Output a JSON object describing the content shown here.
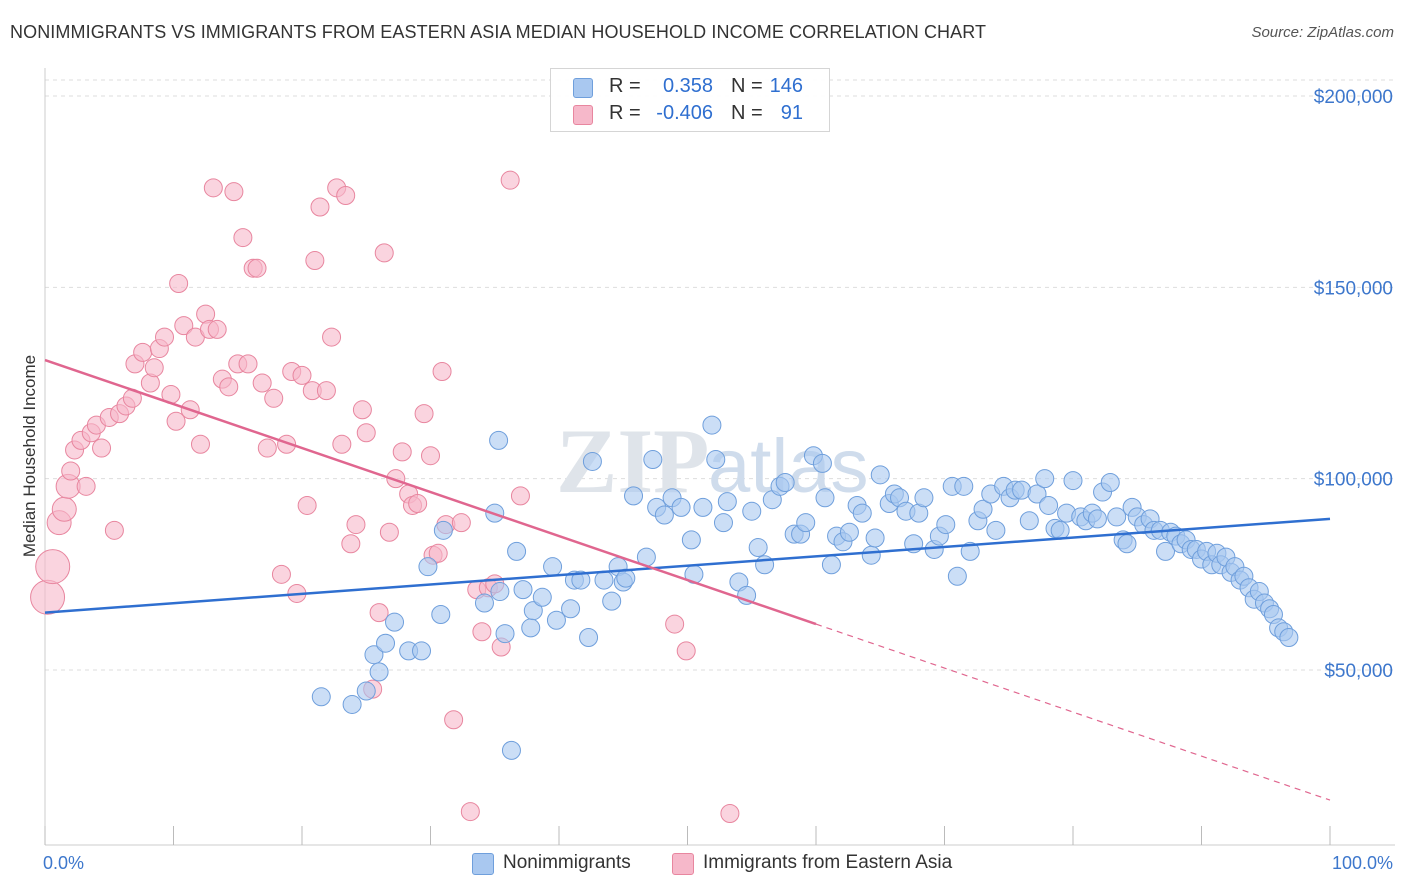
{
  "title": "NONIMMIGRANTS VS IMMIGRANTS FROM EASTERN ASIA MEDIAN HOUSEHOLD INCOME CORRELATION CHART",
  "source": "Source: ZipAtlas.com",
  "legend": {
    "rows": [
      {
        "r_label": "R =",
        "r_value": "0.358",
        "n_label": "N =",
        "n_value": "146"
      },
      {
        "r_label": "R =",
        "r_value": "-0.406",
        "n_label": "N =",
        "n_value": "91"
      }
    ]
  },
  "bottom_legend": [
    "Nonimmigrants",
    "Immigrants from Eastern Asia"
  ],
  "colors": {
    "blue_fill": "#a9c8f0",
    "blue_stroke": "#6f9fdc",
    "blue_line": "#2f6fd0",
    "pink_fill": "#f6b8ca",
    "pink_stroke": "#e8869f",
    "pink_line": "#e0668f",
    "grid": "#dddddd",
    "tick_label": "#3d77cc"
  },
  "chart_data": {
    "type": "scatter",
    "title": "NONIMMIGRANTS VS IMMIGRANTS FROM EASTERN ASIA MEDIAN HOUSEHOLD INCOME CORRELATION CHART",
    "xlabel": "",
    "ylabel": "Median Household Income",
    "xlim": [
      0,
      100
    ],
    "ylim": [
      0,
      210000
    ],
    "x_tick_labels": [
      "0.0%",
      "100.0%"
    ],
    "y_ticks": [
      50000,
      100000,
      150000,
      200000
    ],
    "y_tick_labels": [
      "$50,000",
      "$100,000",
      "$150,000",
      "$200,000"
    ],
    "grid": true,
    "legend_position": "top-center",
    "series": [
      {
        "name": "Nonimmigrants",
        "color": "#a9c8f0",
        "stats": {
          "R": 0.358,
          "N": 146
        },
        "trend": {
          "x": [
            0,
            100
          ],
          "y": [
            65000,
            89500
          ]
        },
        "points": [
          [
            21.5,
            43000
          ],
          [
            23.9,
            41000
          ],
          [
            25.0,
            44500
          ],
          [
            25.6,
            54000
          ],
          [
            26.0,
            49500
          ],
          [
            26.5,
            57000
          ],
          [
            27.2,
            62500
          ],
          [
            28.3,
            55000
          ],
          [
            29.3,
            55000
          ],
          [
            29.8,
            77000
          ],
          [
            30.8,
            64500
          ],
          [
            31.0,
            86500
          ],
          [
            34.2,
            67500
          ],
          [
            35.4,
            70500
          ],
          [
            35.8,
            59500
          ],
          [
            36.3,
            29000
          ],
          [
            35.0,
            91000
          ],
          [
            35.3,
            110000
          ],
          [
            36.7,
            81000
          ],
          [
            37.2,
            71000
          ],
          [
            37.8,
            61000
          ],
          [
            38.0,
            65500
          ],
          [
            38.7,
            69000
          ],
          [
            39.5,
            77000
          ],
          [
            39.8,
            63000
          ],
          [
            40.9,
            66000
          ],
          [
            41.2,
            73500
          ],
          [
            41.7,
            73500
          ],
          [
            42.3,
            58500
          ],
          [
            42.6,
            104500
          ],
          [
            43.5,
            73500
          ],
          [
            44.1,
            68000
          ],
          [
            44.6,
            77000
          ],
          [
            45.0,
            73000
          ],
          [
            45.2,
            74000
          ],
          [
            45.8,
            95500
          ],
          [
            46.8,
            79500
          ],
          [
            47.3,
            105000
          ],
          [
            47.6,
            92500
          ],
          [
            48.2,
            90500
          ],
          [
            48.8,
            95000
          ],
          [
            49.5,
            92500
          ],
          [
            50.3,
            84000
          ],
          [
            50.5,
            75000
          ],
          [
            51.2,
            92500
          ],
          [
            51.9,
            114000
          ],
          [
            52.2,
            105000
          ],
          [
            52.8,
            88500
          ],
          [
            53.1,
            94000
          ],
          [
            54.0,
            73000
          ],
          [
            54.6,
            69500
          ],
          [
            55.0,
            91500
          ],
          [
            55.5,
            82000
          ],
          [
            56.0,
            77500
          ],
          [
            56.6,
            94500
          ],
          [
            57.2,
            98000
          ],
          [
            57.6,
            99000
          ],
          [
            58.3,
            85500
          ],
          [
            58.8,
            85500
          ],
          [
            59.2,
            88500
          ],
          [
            59.8,
            106000
          ],
          [
            60.5,
            104000
          ],
          [
            60.7,
            95000
          ],
          [
            61.2,
            77500
          ],
          [
            61.6,
            85000
          ],
          [
            62.1,
            83500
          ],
          [
            62.6,
            86000
          ],
          [
            63.2,
            93000
          ],
          [
            63.6,
            91000
          ],
          [
            64.3,
            80000
          ],
          [
            64.6,
            84500
          ],
          [
            65.0,
            101000
          ],
          [
            65.7,
            93500
          ],
          [
            66.1,
            96000
          ],
          [
            66.5,
            95000
          ],
          [
            67.0,
            91500
          ],
          [
            67.6,
            83000
          ],
          [
            68.0,
            91000
          ],
          [
            68.4,
            95000
          ],
          [
            69.2,
            81500
          ],
          [
            69.6,
            85000
          ],
          [
            70.1,
            88000
          ],
          [
            70.6,
            98000
          ],
          [
            71.0,
            74500
          ],
          [
            71.5,
            98000
          ],
          [
            72.0,
            81000
          ],
          [
            72.6,
            89000
          ],
          [
            73.0,
            92000
          ],
          [
            73.6,
            96000
          ],
          [
            74.0,
            86500
          ],
          [
            74.6,
            98000
          ],
          [
            75.1,
            95000
          ],
          [
            75.5,
            97000
          ],
          [
            76.0,
            97000
          ],
          [
            76.6,
            89000
          ],
          [
            77.2,
            96000
          ],
          [
            77.8,
            100000
          ],
          [
            78.1,
            93000
          ],
          [
            78.6,
            87000
          ],
          [
            79.0,
            86500
          ],
          [
            79.5,
            91000
          ],
          [
            80.0,
            99500
          ],
          [
            80.6,
            90000
          ],
          [
            81.0,
            89000
          ],
          [
            81.5,
            91000
          ],
          [
            81.9,
            89500
          ],
          [
            82.3,
            96500
          ],
          [
            82.9,
            99000
          ],
          [
            83.4,
            90000
          ],
          [
            83.9,
            84000
          ],
          [
            84.2,
            83000
          ],
          [
            84.6,
            92500
          ],
          [
            85.0,
            90000
          ],
          [
            85.5,
            88000
          ],
          [
            86.0,
            89500
          ],
          [
            86.3,
            86500
          ],
          [
            86.8,
            86500
          ],
          [
            87.2,
            81000
          ],
          [
            87.6,
            86000
          ],
          [
            88.0,
            85000
          ],
          [
            88.4,
            83000
          ],
          [
            88.8,
            84000
          ],
          [
            89.2,
            81500
          ],
          [
            89.6,
            81500
          ],
          [
            90.0,
            79000
          ],
          [
            90.4,
            81000
          ],
          [
            90.8,
            77500
          ],
          [
            91.2,
            80500
          ],
          [
            91.5,
            77500
          ],
          [
            91.9,
            79500
          ],
          [
            92.3,
            75500
          ],
          [
            92.6,
            77000
          ],
          [
            93.0,
            73500
          ],
          [
            93.3,
            74500
          ],
          [
            93.7,
            71500
          ],
          [
            94.1,
            68500
          ],
          [
            94.5,
            70500
          ],
          [
            94.9,
            67500
          ],
          [
            95.3,
            66000
          ],
          [
            95.6,
            64500
          ],
          [
            96.0,
            61000
          ],
          [
            96.4,
            60000
          ],
          [
            96.8,
            58500
          ]
        ]
      },
      {
        "name": "Immigrants from Eastern Asia",
        "color": "#f6b8ca",
        "stats": {
          "R": -0.406,
          "N": 91
        },
        "trend": {
          "x": [
            0,
            60
          ],
          "y": [
            131000,
            62000
          ]
        },
        "trend_dashed": {
          "x": [
            60,
            100
          ],
          "y": [
            62000,
            16000
          ]
        },
        "points": [
          [
            0.2,
            69000
          ],
          [
            0.6,
            77000
          ],
          [
            1.1,
            88500
          ],
          [
            1.5,
            92000
          ],
          [
            1.8,
            98000
          ],
          [
            2.0,
            102000
          ],
          [
            2.3,
            107500
          ],
          [
            2.8,
            110000
          ],
          [
            3.2,
            98000
          ],
          [
            3.6,
            112000
          ],
          [
            4.0,
            114000
          ],
          [
            4.4,
            108000
          ],
          [
            5.0,
            116000
          ],
          [
            5.4,
            86500
          ],
          [
            5.8,
            117000
          ],
          [
            6.3,
            119000
          ],
          [
            6.8,
            121000
          ],
          [
            7.0,
            130000
          ],
          [
            7.6,
            133000
          ],
          [
            8.2,
            125000
          ],
          [
            8.5,
            129000
          ],
          [
            8.9,
            134000
          ],
          [
            9.3,
            137000
          ],
          [
            9.8,
            122000
          ],
          [
            10.2,
            115000
          ],
          [
            10.4,
            151000
          ],
          [
            10.8,
            140000
          ],
          [
            11.3,
            118000
          ],
          [
            11.7,
            137000
          ],
          [
            12.1,
            109000
          ],
          [
            12.5,
            143000
          ],
          [
            12.8,
            139000
          ],
          [
            13.1,
            176000
          ],
          [
            13.4,
            139000
          ],
          [
            13.8,
            126000
          ],
          [
            14.3,
            124000
          ],
          [
            14.7,
            175000
          ],
          [
            15.0,
            130000
          ],
          [
            15.4,
            163000
          ],
          [
            15.8,
            130000
          ],
          [
            16.2,
            155000
          ],
          [
            16.5,
            155000
          ],
          [
            16.9,
            125000
          ],
          [
            17.3,
            108000
          ],
          [
            17.8,
            121000
          ],
          [
            18.4,
            75000
          ],
          [
            18.8,
            109000
          ],
          [
            19.2,
            128000
          ],
          [
            19.6,
            70000
          ],
          [
            20.0,
            127000
          ],
          [
            20.4,
            93000
          ],
          [
            20.8,
            123000
          ],
          [
            21.0,
            157000
          ],
          [
            21.4,
            171000
          ],
          [
            21.9,
            123000
          ],
          [
            22.3,
            137000
          ],
          [
            22.7,
            176000
          ],
          [
            23.1,
            109000
          ],
          [
            23.4,
            174000
          ],
          [
            23.8,
            83000
          ],
          [
            24.2,
            88000
          ],
          [
            24.7,
            118000
          ],
          [
            25.0,
            112000
          ],
          [
            25.5,
            45000
          ],
          [
            26.0,
            65000
          ],
          [
            26.4,
            159000
          ],
          [
            26.8,
            86000
          ],
          [
            27.3,
            100000
          ],
          [
            27.8,
            107000
          ],
          [
            28.3,
            96000
          ],
          [
            28.6,
            93000
          ],
          [
            29.0,
            93500
          ],
          [
            29.5,
            117000
          ],
          [
            30.0,
            106000
          ],
          [
            30.2,
            80000
          ],
          [
            30.6,
            80500
          ],
          [
            30.9,
            128000
          ],
          [
            31.2,
            88000
          ],
          [
            31.8,
            37000
          ],
          [
            32.4,
            88500
          ],
          [
            33.1,
            13000
          ],
          [
            33.6,
            71000
          ],
          [
            34.0,
            60000
          ],
          [
            34.5,
            71500
          ],
          [
            35.0,
            72500
          ],
          [
            35.5,
            56000
          ],
          [
            36.2,
            178000
          ],
          [
            37.0,
            95500
          ],
          [
            49.0,
            62000
          ],
          [
            49.9,
            55000
          ],
          [
            53.3,
            12500
          ]
        ]
      }
    ]
  }
}
